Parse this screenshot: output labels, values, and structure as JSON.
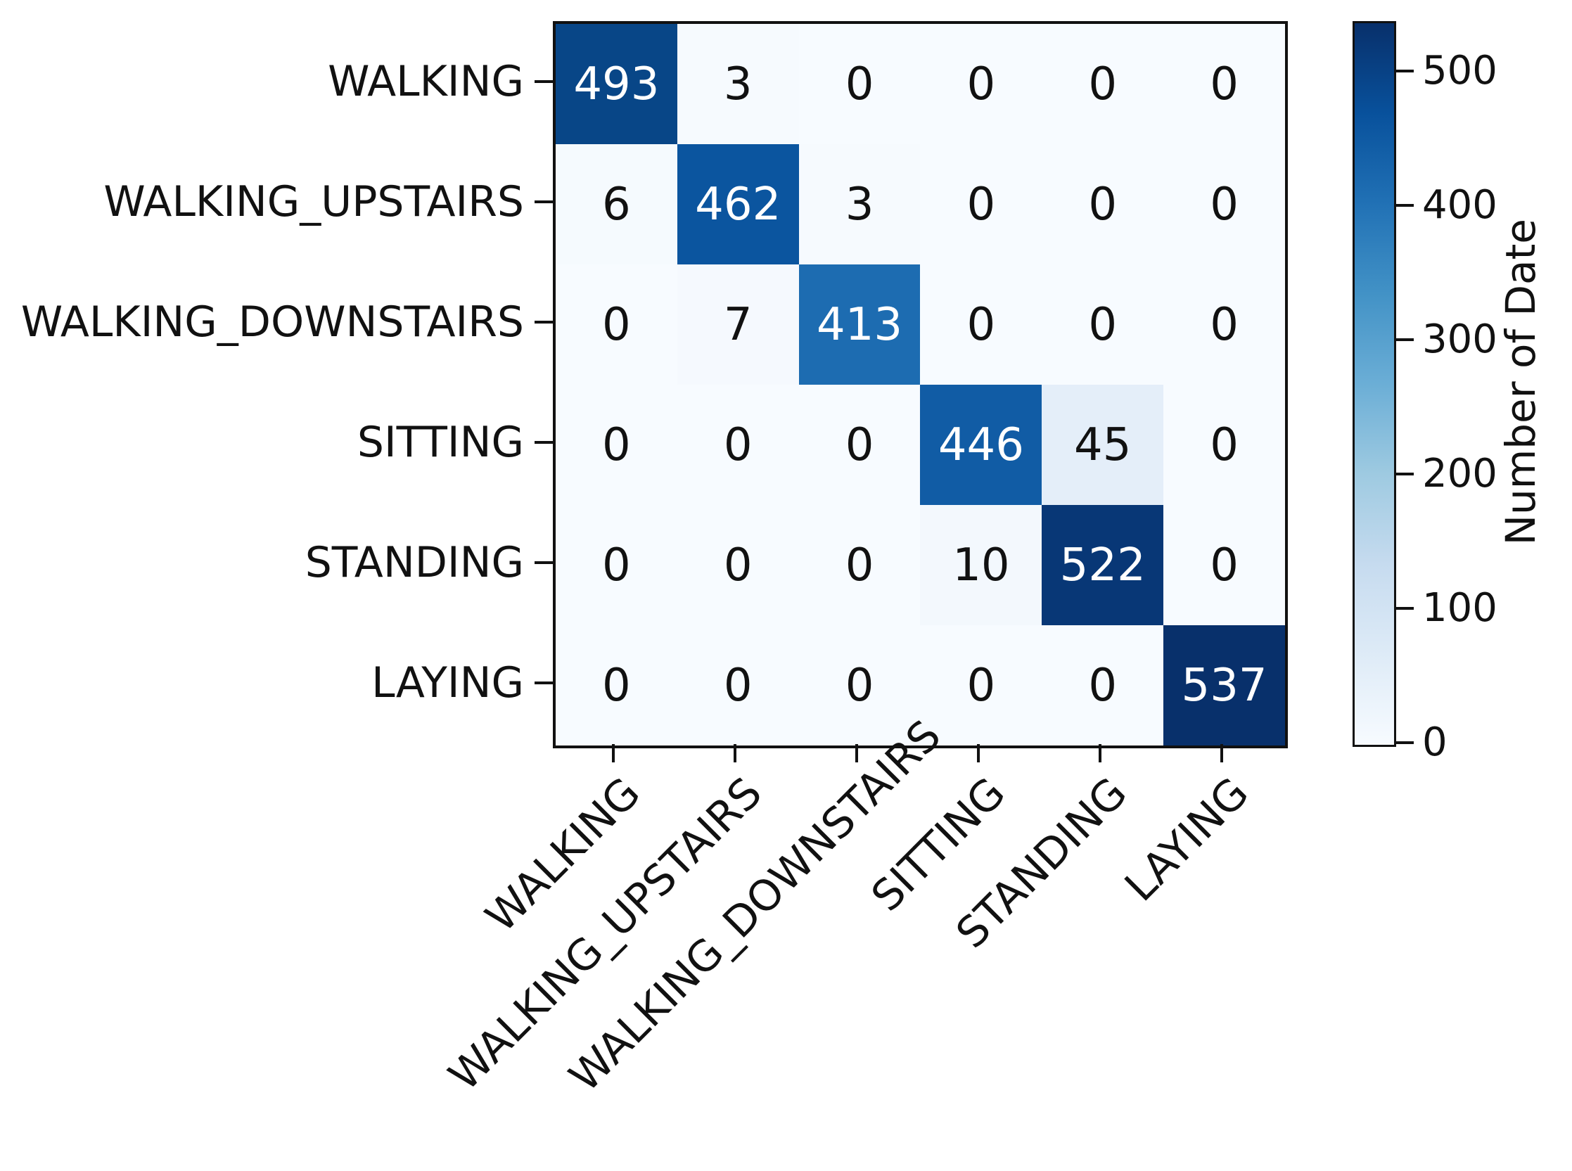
{
  "chart_data": {
    "type": "heatmap",
    "title": "",
    "x_categories": [
      "WALKING",
      "WALKING_UPSTAIRS",
      "WALKING_DOWNSTAIRS",
      "SITTING",
      "STANDING",
      "LAYING"
    ],
    "y_categories": [
      "WALKING",
      "WALKING_UPSTAIRS",
      "WALKING_DOWNSTAIRS",
      "SITTING",
      "STANDING",
      "LAYING"
    ],
    "matrix": [
      [
        493,
        3,
        0,
        0,
        0,
        0
      ],
      [
        6,
        462,
        3,
        0,
        0,
        0
      ],
      [
        0,
        7,
        413,
        0,
        0,
        0
      ],
      [
        0,
        0,
        0,
        446,
        45,
        0
      ],
      [
        0,
        0,
        0,
        10,
        522,
        0
      ],
      [
        0,
        0,
        0,
        0,
        0,
        537
      ]
    ],
    "cell_colors": [
      [
        "#084687",
        "#f6fafe",
        "#f7fbff",
        "#f7fbff",
        "#f7fbff",
        "#f7fbff"
      ],
      [
        "#f5fafe",
        "#0b559f",
        "#f6fafe",
        "#f7fbff",
        "#f7fbff",
        "#f7fbff"
      ],
      [
        "#f7fbff",
        "#f5f9fe",
        "#1d6cb1",
        "#f7fbff",
        "#f7fbff",
        "#f7fbff"
      ],
      [
        "#f7fbff",
        "#f7fbff",
        "#f7fbff",
        "#115ca5",
        "#e4eef9",
        "#f7fbff"
      ],
      [
        "#f7fbff",
        "#f7fbff",
        "#f7fbff",
        "#f3f8fd",
        "#083776",
        "#f7fbff"
      ],
      [
        "#f7fbff",
        "#f7fbff",
        "#f7fbff",
        "#f7fbff",
        "#f7fbff",
        "#08306b"
      ]
    ],
    "cell_text_colors": [
      [
        "#ffffff",
        "#111111",
        "#111111",
        "#111111",
        "#111111",
        "#111111"
      ],
      [
        "#111111",
        "#ffffff",
        "#111111",
        "#111111",
        "#111111",
        "#111111"
      ],
      [
        "#111111",
        "#111111",
        "#ffffff",
        "#111111",
        "#111111",
        "#111111"
      ],
      [
        "#111111",
        "#111111",
        "#111111",
        "#ffffff",
        "#111111",
        "#111111"
      ],
      [
        "#111111",
        "#111111",
        "#111111",
        "#111111",
        "#ffffff",
        "#111111"
      ],
      [
        "#111111",
        "#111111",
        "#111111",
        "#111111",
        "#111111",
        "#ffffff"
      ]
    ],
    "colorbar": {
      "label": "Number of Date",
      "ticks": [
        0,
        100,
        200,
        300,
        400,
        500
      ],
      "vmin": 0,
      "vmax": 537,
      "colormap": "Blues",
      "gradient_stops": [
        "#f7fbff",
        "#deebf7",
        "#c6dbef",
        "#9ecae1",
        "#6baed6",
        "#4292c6",
        "#2171b5",
        "#08519c",
        "#08306b"
      ]
    },
    "axis_color": "#111111",
    "background": "#ffffff",
    "grid": false,
    "legend_position": "right-colorbar"
  }
}
